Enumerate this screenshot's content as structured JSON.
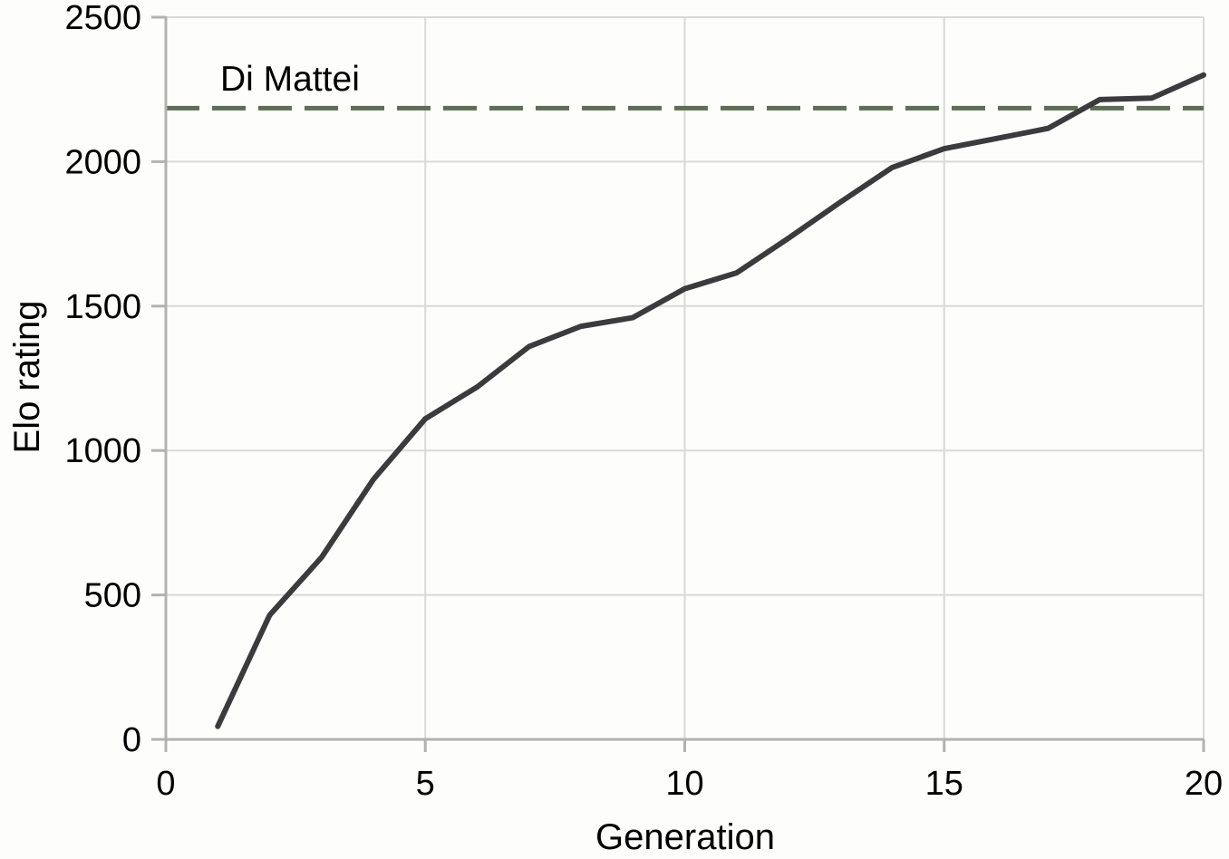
{
  "chart_data": {
    "type": "line",
    "title": "",
    "xlabel": "Generation",
    "ylabel": "Elo rating",
    "x": [
      1,
      2,
      3,
      4,
      5,
      6,
      7,
      8,
      9,
      10,
      11,
      12,
      13,
      14,
      15,
      16,
      17,
      18,
      19,
      20
    ],
    "series": [
      {
        "name": "Elo rating",
        "values": [
          45,
          430,
          630,
          900,
          1110,
          1220,
          1360,
          1430,
          1460,
          1560,
          1615,
          1735,
          1860,
          1980,
          2045,
          2080,
          2115,
          2215,
          2220,
          2300
        ]
      }
    ],
    "reference_line": {
      "label": "Di Mattei",
      "value": 2185,
      "style": "dashed"
    },
    "xlim": [
      0,
      20
    ],
    "ylim": [
      0,
      2500
    ],
    "x_ticks": [
      0,
      5,
      10,
      15,
      20
    ],
    "y_ticks": [
      0,
      500,
      1000,
      1500,
      2000,
      2500
    ],
    "grid": true,
    "legend_position": "none",
    "colors": {
      "line": "#3b3b3d",
      "reference": "#5c6e51",
      "gridline": "#d9d9d9",
      "axis": "#b2b2b2",
      "text": "#000000",
      "background": "#fdfdfc"
    }
  }
}
